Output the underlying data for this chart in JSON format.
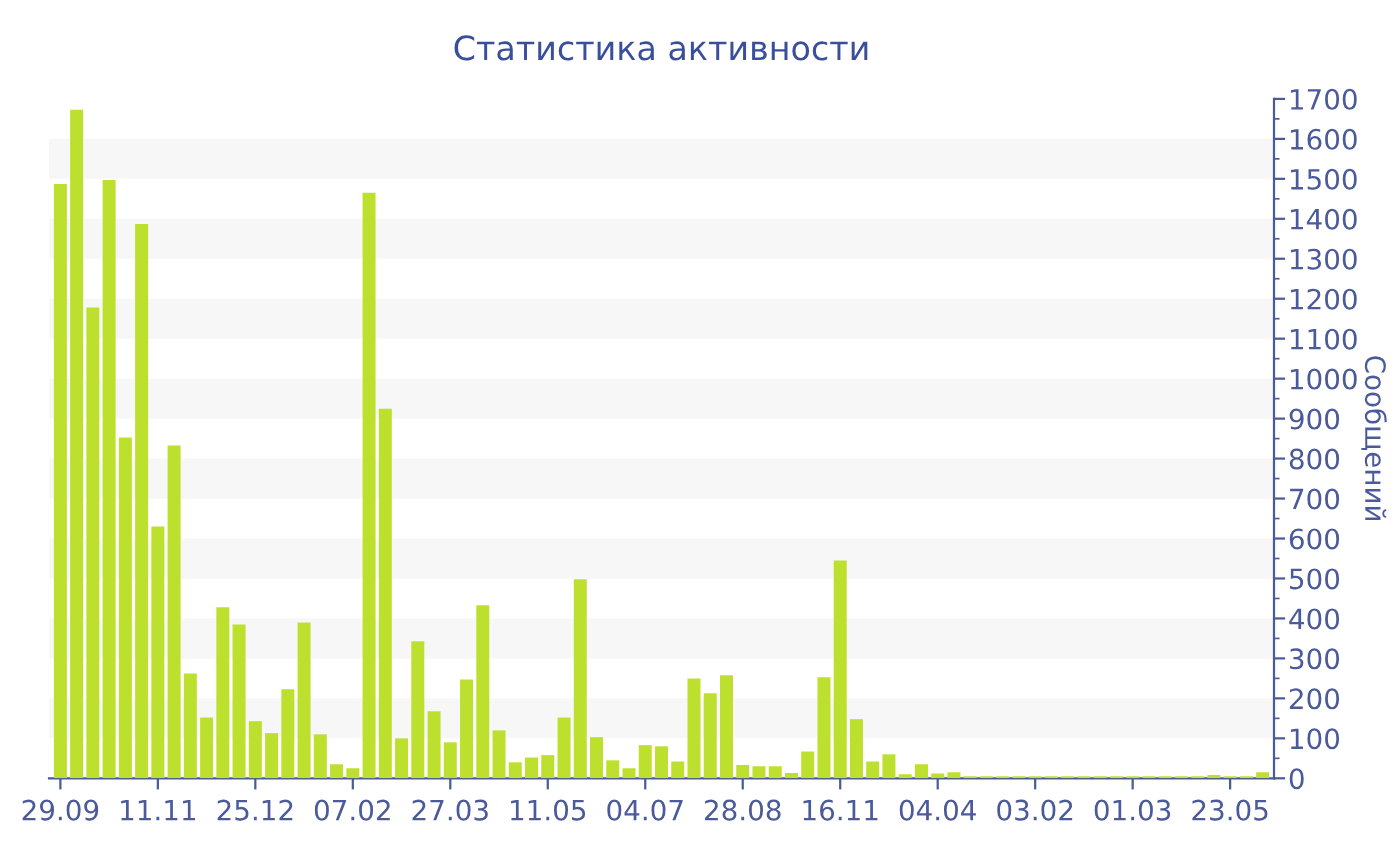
{
  "chart_data": {
    "type": "bar",
    "title": "Статистика активности",
    "ylabel": "Сообщений",
    "categories": [
      "29.09",
      null,
      null,
      null,
      null,
      null,
      "11.11",
      null,
      null,
      null,
      null,
      null,
      "25.12",
      null,
      null,
      null,
      null,
      null,
      "07.02",
      null,
      null,
      null,
      null,
      null,
      "27.03",
      null,
      null,
      null,
      null,
      null,
      "11.05",
      null,
      null,
      null,
      null,
      null,
      "04.07",
      null,
      null,
      null,
      null,
      null,
      "28.08",
      null,
      null,
      null,
      null,
      null,
      "16.11",
      null,
      null,
      null,
      null,
      null,
      "04.04",
      null,
      null,
      null,
      null,
      null,
      "03.02",
      null,
      null,
      null,
      null,
      null,
      "01.03",
      null,
      null,
      null,
      null,
      null,
      "23.05",
      null,
      null
    ],
    "values": [
      1487,
      1673,
      1178,
      1497,
      853,
      1387,
      630,
      833,
      262,
      152,
      428,
      385,
      143,
      113,
      223,
      390,
      110,
      35,
      25,
      1465,
      925,
      100,
      343,
      168,
      90,
      247,
      433,
      120,
      40,
      52,
      58,
      152,
      498,
      103,
      45,
      25,
      83,
      80,
      42,
      250,
      213,
      258,
      33,
      30,
      30,
      13,
      67,
      253,
      545,
      148,
      42,
      60,
      10,
      35,
      12,
      15,
      5,
      5,
      5,
      5,
      5,
      5,
      5,
      5,
      5,
      5,
      5,
      5,
      5,
      5,
      5,
      8,
      5,
      5,
      15
    ],
    "color": "#bde02e",
    "ylim": [
      0,
      1700
    ],
    "yticks": [
      0,
      100,
      200,
      300,
      400,
      500,
      600,
      700,
      800,
      900,
      1000,
      1100,
      1200,
      1300,
      1400,
      1500,
      1600,
      1700
    ],
    "bands": [
      {
        "axis": "y",
        "from": 100,
        "to": 200,
        "color": "#f7f7f7"
      },
      {
        "axis": "y",
        "from": 300,
        "to": 400,
        "color": "#f7f7f7"
      },
      {
        "axis": "y",
        "from": 500,
        "to": 600,
        "color": "#f7f7f7"
      },
      {
        "axis": "y",
        "from": 700,
        "to": 800,
        "color": "#f7f7f7"
      },
      {
        "axis": "y",
        "from": 900,
        "to": 1000,
        "color": "#f7f7f7"
      },
      {
        "axis": "y",
        "from": 1100,
        "to": 1200,
        "color": "#f7f7f7"
      },
      {
        "axis": "y",
        "from": 1300,
        "to": 1400,
        "color": "#f7f7f7"
      },
      {
        "axis": "y",
        "from": 1500,
        "to": 1600,
        "color": "#f7f7f7"
      }
    ]
  }
}
